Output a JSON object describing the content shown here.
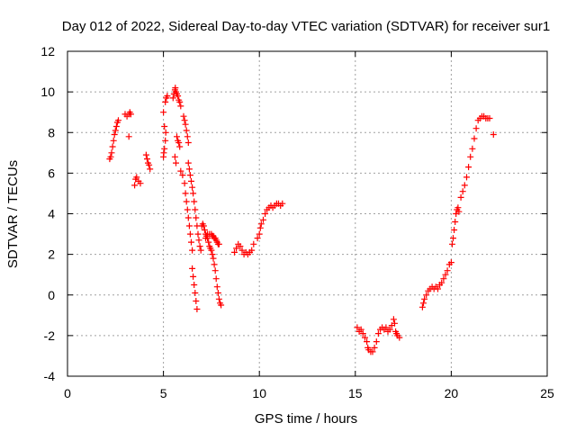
{
  "chart_data": {
    "type": "scatter",
    "title": "Day 012 of 2022, Sidereal Day-to-day VTEC variation (SDTVAR) for receiver sur1",
    "xlabel": "GPS time / hours",
    "ylabel": "SDTVAR / TECUs",
    "xlim": [
      0,
      25
    ],
    "ylim": [
      -4,
      12
    ],
    "xticks": [
      0,
      5,
      10,
      15,
      20,
      25
    ],
    "yticks": [
      -4,
      -2,
      0,
      2,
      4,
      6,
      8,
      10,
      12
    ],
    "grid": true,
    "marker": "+",
    "color": "#ff0000",
    "series": [
      {
        "name": "sur1",
        "x": [
          2.2,
          2.25,
          2.3,
          2.35,
          2.4,
          2.45,
          2.5,
          2.55,
          2.6,
          2.65,
          3.0,
          3.1,
          3.2,
          3.25,
          3.3,
          3.2,
          3.5,
          3.55,
          3.6,
          3.7,
          3.8,
          4.1,
          4.15,
          4.2,
          4.25,
          4.3,
          5.0,
          5.02,
          5.05,
          5.1,
          5.12,
          5.15,
          5.2,
          5.1,
          5.0,
          5.05,
          5.5,
          5.55,
          5.6,
          5.62,
          5.65,
          5.7,
          5.75,
          5.8,
          5.85,
          5.9,
          5.7,
          5.75,
          5.8,
          5.85,
          5.6,
          5.65,
          5.9,
          6.0,
          6.05,
          6.1,
          6.15,
          6.2,
          6.25,
          6.3,
          6.1,
          6.15,
          6.2,
          6.25,
          6.3,
          6.35,
          6.4,
          6.45,
          6.5,
          6.3,
          6.35,
          6.4,
          6.45,
          6.5,
          6.55,
          6.6,
          6.65,
          6.7,
          6.75,
          6.5,
          6.55,
          6.6,
          6.65,
          6.7,
          6.75,
          6.8,
          6.85,
          6.9,
          6.95,
          7.0,
          7.05,
          7.1,
          7.15,
          7.2,
          7.25,
          7.3,
          7.35,
          7.4,
          7.45,
          7.5,
          7.55,
          7.6,
          7.65,
          7.7,
          7.75,
          7.8,
          7.85,
          7.9,
          7.95,
          8.0,
          7.2,
          7.25,
          7.3,
          7.4,
          7.5,
          7.55,
          7.6,
          7.65,
          7.7,
          7.75,
          7.8,
          7.85,
          7.9,
          8.7,
          8.8,
          8.9,
          9.0,
          9.1,
          9.2,
          9.3,
          9.4,
          9.5,
          9.6,
          9.7,
          9.9,
          10.0,
          10.05,
          10.1,
          10.2,
          10.3,
          10.4,
          10.5,
          10.6,
          10.7,
          10.8,
          10.9,
          11.0,
          11.1,
          11.2,
          15.1,
          15.2,
          15.3,
          15.4,
          15.5,
          15.6,
          15.65,
          15.7,
          15.8,
          15.9,
          16.0,
          16.1,
          16.2,
          16.3,
          16.4,
          16.5,
          16.6,
          16.7,
          16.8,
          16.9,
          17.0,
          17.05,
          17.1,
          17.15,
          17.2,
          17.3,
          18.5,
          18.55,
          18.6,
          18.7,
          18.8,
          18.9,
          19.0,
          19.1,
          19.2,
          19.3,
          19.4,
          19.5,
          19.6,
          19.7,
          19.8,
          19.9,
          20.0,
          20.05,
          20.1,
          20.15,
          20.2,
          20.25,
          20.3,
          20.35,
          20.4,
          20.5,
          20.6,
          20.7,
          20.8,
          20.9,
          21.0,
          21.1,
          21.2,
          21.3,
          21.4,
          21.5,
          21.6,
          21.7,
          21.8,
          21.9,
          22.0,
          22.2
        ],
        "y": [
          6.7,
          6.8,
          7.0,
          7.3,
          7.6,
          7.9,
          8.1,
          8.3,
          8.5,
          8.6,
          8.9,
          8.8,
          8.9,
          9.0,
          8.9,
          7.8,
          5.4,
          5.7,
          5.8,
          5.6,
          5.5,
          6.9,
          6.7,
          6.5,
          6.4,
          6.2,
          6.8,
          7.0,
          7.2,
          7.6,
          8.0,
          9.7,
          9.8,
          9.5,
          9.0,
          8.3,
          9.7,
          9.9,
          10.1,
          10.2,
          10.0,
          9.9,
          9.8,
          9.6,
          9.5,
          9.3,
          7.8,
          7.6,
          7.5,
          7.3,
          6.8,
          6.5,
          6.1,
          5.9,
          8.8,
          8.6,
          8.4,
          8.1,
          7.8,
          7.5,
          5.5,
          5.0,
          4.6,
          4.2,
          3.8,
          3.4,
          3.0,
          2.6,
          2.2,
          6.5,
          6.2,
          5.9,
          5.6,
          5.3,
          5.0,
          4.6,
          4.2,
          3.8,
          3.4,
          1.3,
          0.9,
          0.5,
          0.1,
          -0.3,
          -0.7,
          3.0,
          2.7,
          2.4,
          2.2,
          3.4,
          3.5,
          3.4,
          3.2,
          3.0,
          2.9,
          2.8,
          2.6,
          2.4,
          2.3,
          2.2,
          2.0,
          1.8,
          1.5,
          1.2,
          0.8,
          0.4,
          0.1,
          -0.2,
          -0.4,
          -0.5,
          2.8,
          2.9,
          3.0,
          3.0,
          3.0,
          2.9,
          2.9,
          2.8,
          2.8,
          2.7,
          2.6,
          2.5,
          2.5,
          2.1,
          2.3,
          2.5,
          2.4,
          2.2,
          2.0,
          2.1,
          2.0,
          2.1,
          2.2,
          2.5,
          2.8,
          3.0,
          3.3,
          3.5,
          3.7,
          4.0,
          4.2,
          4.3,
          4.4,
          4.3,
          4.4,
          4.5,
          4.5,
          4.4,
          4.5,
          -1.6,
          -1.8,
          -1.7,
          -1.9,
          -2.1,
          -2.3,
          -2.6,
          -2.7,
          -2.8,
          -2.8,
          -2.6,
          -2.3,
          -1.9,
          -1.7,
          -1.6,
          -1.7,
          -1.6,
          -1.8,
          -1.7,
          -1.5,
          -1.2,
          -1.4,
          -1.8,
          -1.9,
          -2.0,
          -2.1,
          -0.6,
          -0.4,
          -0.2,
          0.0,
          0.2,
          0.3,
          0.4,
          0.3,
          0.4,
          0.3,
          0.5,
          0.6,
          0.8,
          1.0,
          1.2,
          1.5,
          1.6,
          2.5,
          2.8,
          3.2,
          3.6,
          4.0,
          4.2,
          4.3,
          4.1,
          4.8,
          5.1,
          5.4,
          5.8,
          6.3,
          6.8,
          7.2,
          7.7,
          8.2,
          8.6,
          8.7,
          8.8,
          8.8,
          8.7,
          8.7,
          8.7,
          7.9
        ]
      }
    ]
  }
}
